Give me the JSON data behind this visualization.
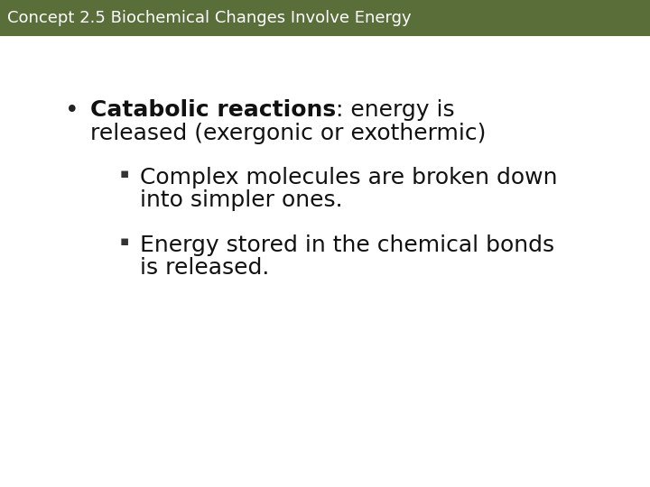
{
  "header_text": "Concept 2.5 Biochemical Changes Involve Energy",
  "header_bg_color": "#5a6e3a",
  "header_text_color": "#ffffff",
  "body_bg_color": "#ffffff",
  "bullet1_bold": "Catabolic reactions",
  "bullet1_colon": ": energy is",
  "bullet1_line2": "released (exergonic or exothermic)",
  "sub_bullet1_line1": "Complex molecules are broken down",
  "sub_bullet1_line2": "into simpler ones.",
  "sub_bullet2_line1": "Energy stored in the chemical bonds",
  "sub_bullet2_line2": "is released.",
  "header_fontsize": 13,
  "bullet_fontsize": 18,
  "sub_bullet_fontsize": 18
}
